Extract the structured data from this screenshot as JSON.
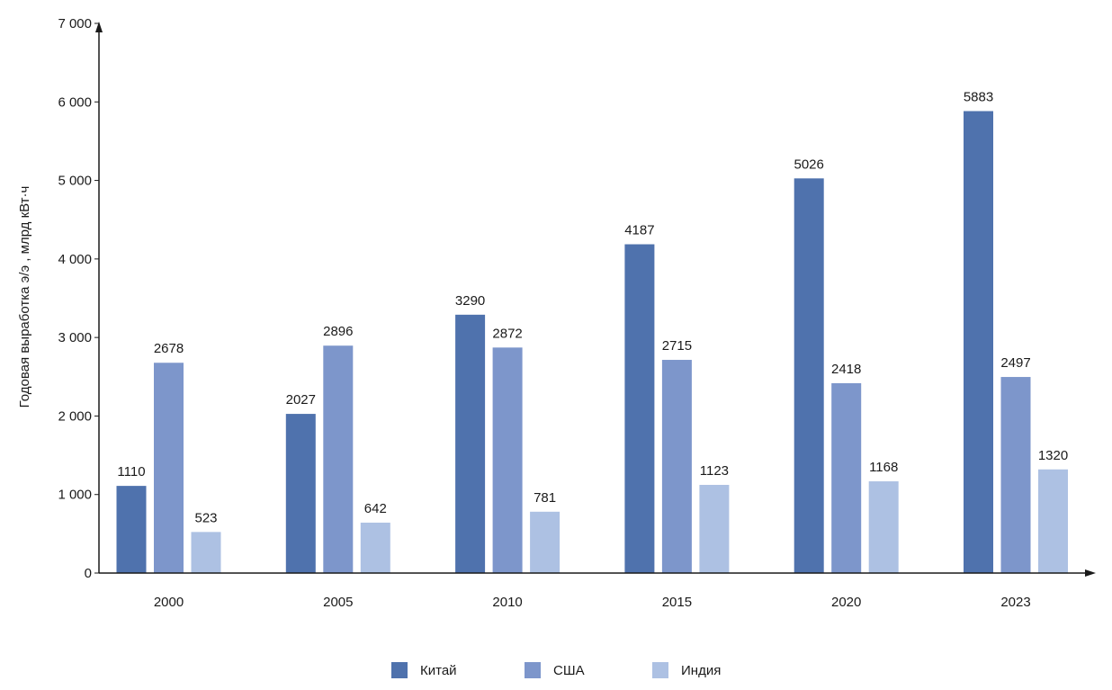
{
  "chart_data": {
    "type": "bar",
    "ylabel": "Годовая выработка э/э , млрд кВт·ч",
    "xlabel": "",
    "categories": [
      "2000",
      "2005",
      "2010",
      "2015",
      "2020",
      "2023"
    ],
    "series": [
      {
        "name": "Китай",
        "color": "#4f72ad",
        "values": [
          1110,
          2027,
          3290,
          4187,
          5026,
          5883
        ]
      },
      {
        "name": "США",
        "color": "#7d96cb",
        "values": [
          2678,
          2896,
          2872,
          2715,
          2418,
          2497
        ]
      },
      {
        "name": "Индия",
        "color": "#adc1e3",
        "values": [
          523,
          642,
          781,
          1123,
          1168,
          1320
        ]
      }
    ],
    "data_labels": [
      [
        "1110",
        "2027",
        "3290",
        "4187",
        "5026",
        "5883"
      ],
      [
        "2678",
        "2896",
        "2872",
        "2715",
        "2418",
        "2497"
      ],
      [
        "523",
        "642",
        "781",
        "1123",
        "1168",
        "1320"
      ]
    ],
    "ylim": [
      0,
      7000
    ],
    "yticks": [
      0,
      1000,
      2000,
      3000,
      4000,
      5000,
      6000,
      7000
    ],
    "ytick_labels": [
      "0",
      "1 000",
      "2 000",
      "3 000",
      "4 000",
      "5 000",
      "6 000",
      "7 000"
    ],
    "grid": false,
    "legend_position": "bottom-center"
  }
}
